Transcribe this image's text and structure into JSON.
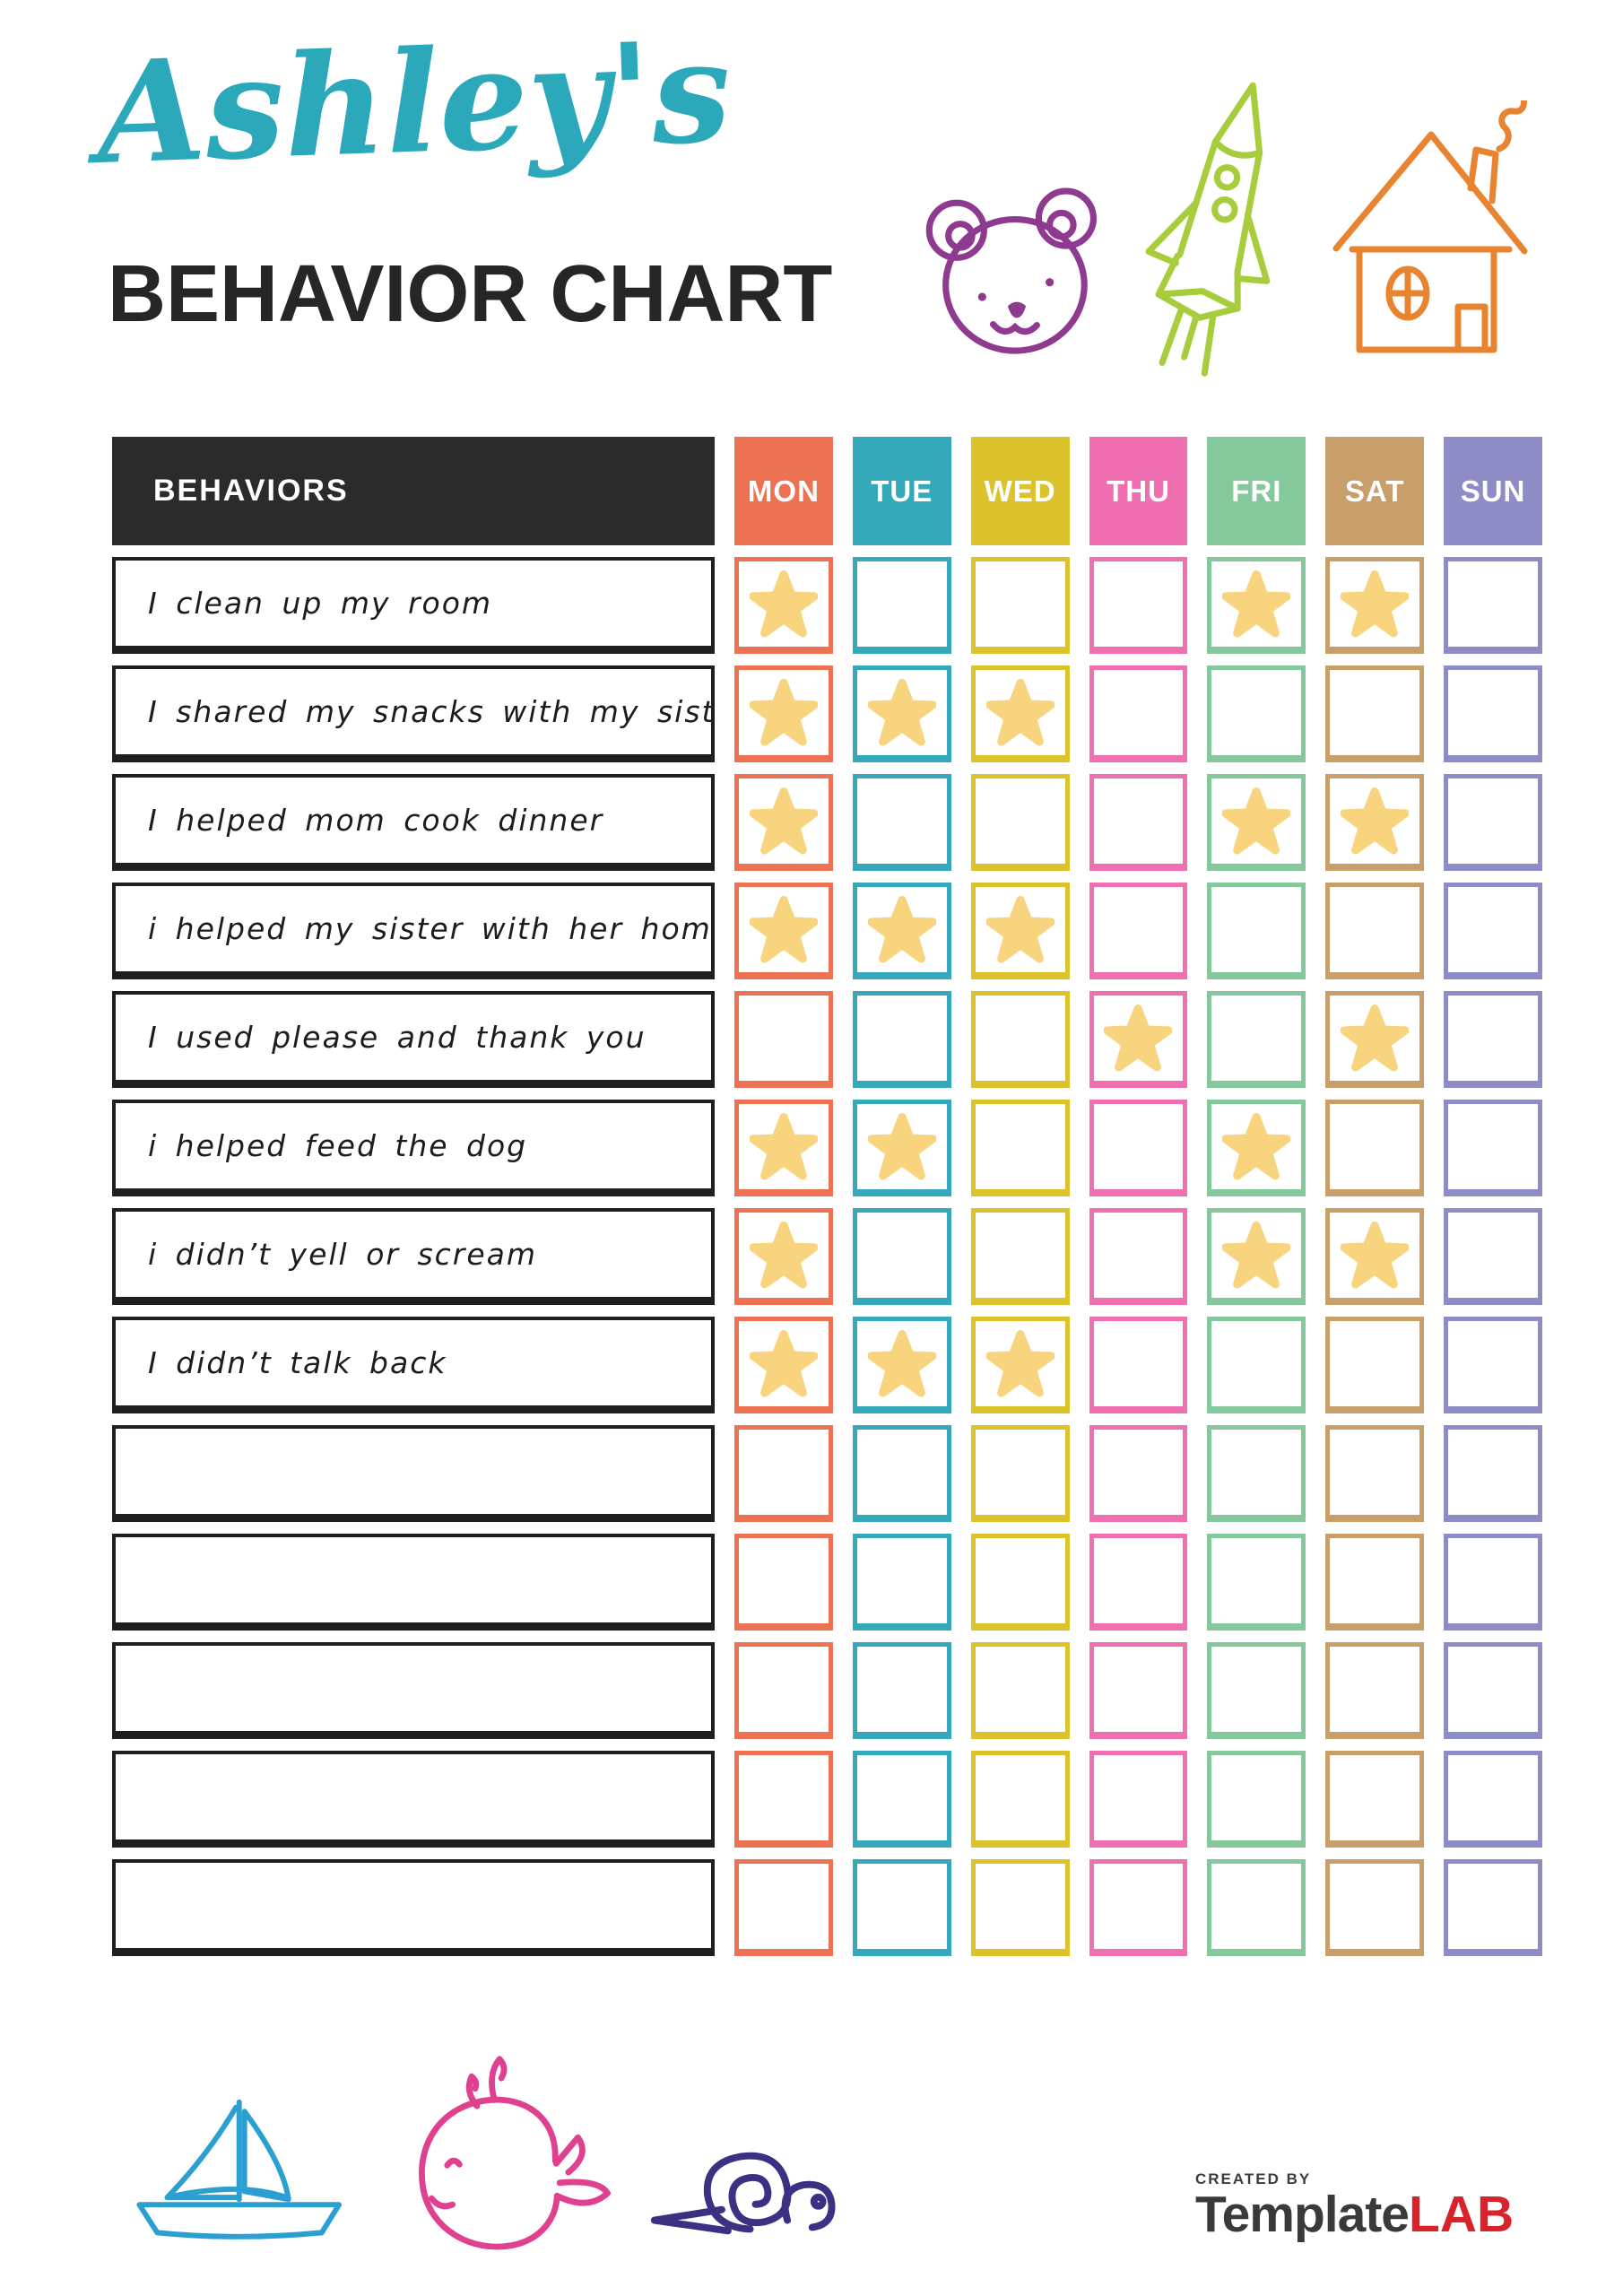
{
  "page": {
    "title_script": "Ashley's",
    "title_main": "BEHAVIOR CHART",
    "accent_color": "#2ba8ba"
  },
  "decorations": {
    "top": [
      {
        "name": "bear",
        "color": "#8e3a8e"
      },
      {
        "name": "rocket",
        "color": "#a8cd3c"
      },
      {
        "name": "house",
        "color": "#e8842f"
      }
    ],
    "bottom": [
      {
        "name": "sailboat",
        "color": "#2b9fd1"
      },
      {
        "name": "whale",
        "color": "#e0418f"
      },
      {
        "name": "snail",
        "color": "#3a3183"
      }
    ]
  },
  "chart": {
    "behaviors_header": "BEHAVIORS",
    "header_bg": "#2b2b2b",
    "days": [
      {
        "label": "MON",
        "color": "#ed7153"
      },
      {
        "label": "TUE",
        "color": "#35a8ba"
      },
      {
        "label": "WED",
        "color": "#dcc32b"
      },
      {
        "label": "THU",
        "color": "#f06fb0"
      },
      {
        "label": "FRI",
        "color": "#84c89b"
      },
      {
        "label": "SAT",
        "color": "#c89e6a"
      },
      {
        "label": "SUN",
        "color": "#8e8cc6"
      }
    ],
    "star": {
      "color": "#f8d47e"
    },
    "rows": [
      {
        "behavior": "I clean up my room",
        "stars": [
          "MON",
          "FRI",
          "SAT"
        ]
      },
      {
        "behavior": "I shared my snacks with my sister",
        "stars": [
          "MON",
          "TUE",
          "WED"
        ]
      },
      {
        "behavior": "I helped mom cook dinner",
        "stars": [
          "MON",
          "FRI",
          "SAT"
        ]
      },
      {
        "behavior": "i helped my sister with her homework",
        "stars": [
          "MON",
          "TUE",
          "WED"
        ]
      },
      {
        "behavior": "I used please and thank you",
        "stars": [
          "THU",
          "SAT"
        ]
      },
      {
        "behavior": "i helped feed the dog",
        "stars": [
          "MON",
          "TUE",
          "FRI"
        ]
      },
      {
        "behavior": "i didn’t yell or scream",
        "stars": [
          "MON",
          "FRI",
          "SAT"
        ]
      },
      {
        "behavior": "I didn’t talk back",
        "stars": [
          "MON",
          "TUE",
          "WED"
        ]
      },
      {
        "behavior": "",
        "stars": []
      },
      {
        "behavior": "",
        "stars": []
      },
      {
        "behavior": "",
        "stars": []
      },
      {
        "behavior": "",
        "stars": []
      },
      {
        "behavior": "",
        "stars": []
      }
    ]
  },
  "footer": {
    "created_by": "CREATED BY",
    "brand_name": "Template",
    "brand_suffix": "LAB",
    "brand_color": "#3a3a3a",
    "brand_accent": "#d8232a"
  }
}
